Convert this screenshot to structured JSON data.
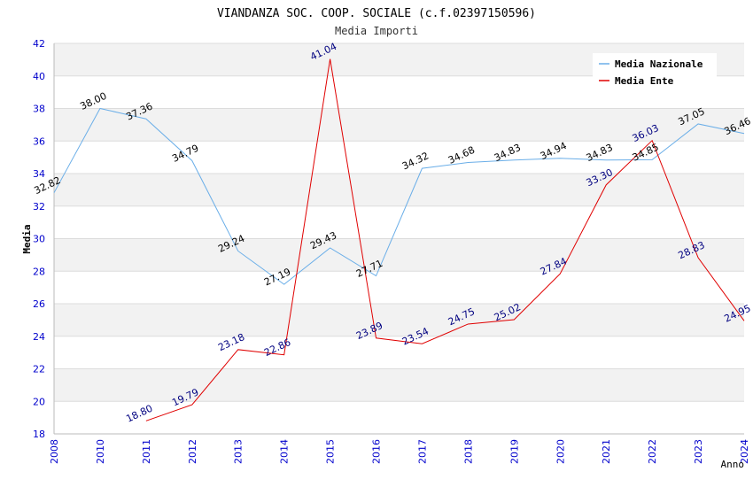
{
  "chart_data": {
    "type": "line",
    "title": "VIANDANZA SOC. COOP. SOCIALE (c.f.02397150596)",
    "subtitle": "Media Importi",
    "xlabel": "Anno",
    "ylabel": "Media",
    "ylim": [
      18,
      42
    ],
    "yticks": [
      "18",
      "20",
      "22",
      "24",
      "26",
      "28",
      "30",
      "32",
      "34",
      "36",
      "38",
      "40",
      "42"
    ],
    "categories": [
      "2008",
      "2010",
      "2011",
      "2012",
      "2013",
      "2014",
      "2015",
      "2016",
      "2017",
      "2018",
      "2019",
      "2020",
      "2021",
      "2022",
      "2023",
      "2024"
    ],
    "grid": true,
    "legend_position": "top-right",
    "series": [
      {
        "name": "Media Nazionale",
        "color": "#6aaee8",
        "label_color": "#000000",
        "values": [
          32.82,
          38.0,
          37.36,
          34.79,
          29.24,
          27.19,
          29.43,
          27.71,
          34.32,
          34.68,
          34.83,
          34.94,
          34.83,
          34.85,
          37.05,
          36.46
        ],
        "labels": [
          "32.82",
          "38.00",
          "37.36",
          "34.79",
          "29.24",
          "27.19",
          "29.43",
          "27.71",
          "34.32",
          "34.68",
          "34.83",
          "34.94",
          "34.83",
          "34.85",
          "37.05",
          "36.46"
        ]
      },
      {
        "name": "Media Ente",
        "color": "#e00000",
        "label_color": "#000080",
        "values": [
          null,
          null,
          18.8,
          19.79,
          23.18,
          22.86,
          41.04,
          23.89,
          23.54,
          24.75,
          25.02,
          27.84,
          33.3,
          36.03,
          28.83,
          24.95
        ],
        "labels": [
          "",
          "",
          "18.80",
          "19.79",
          "23.18",
          "22.86",
          "41.04",
          "23.89",
          "23.54",
          "24.75",
          "25.02",
          "27.84",
          "33.30",
          "36.03",
          "28.83",
          "24.95"
        ]
      }
    ]
  }
}
